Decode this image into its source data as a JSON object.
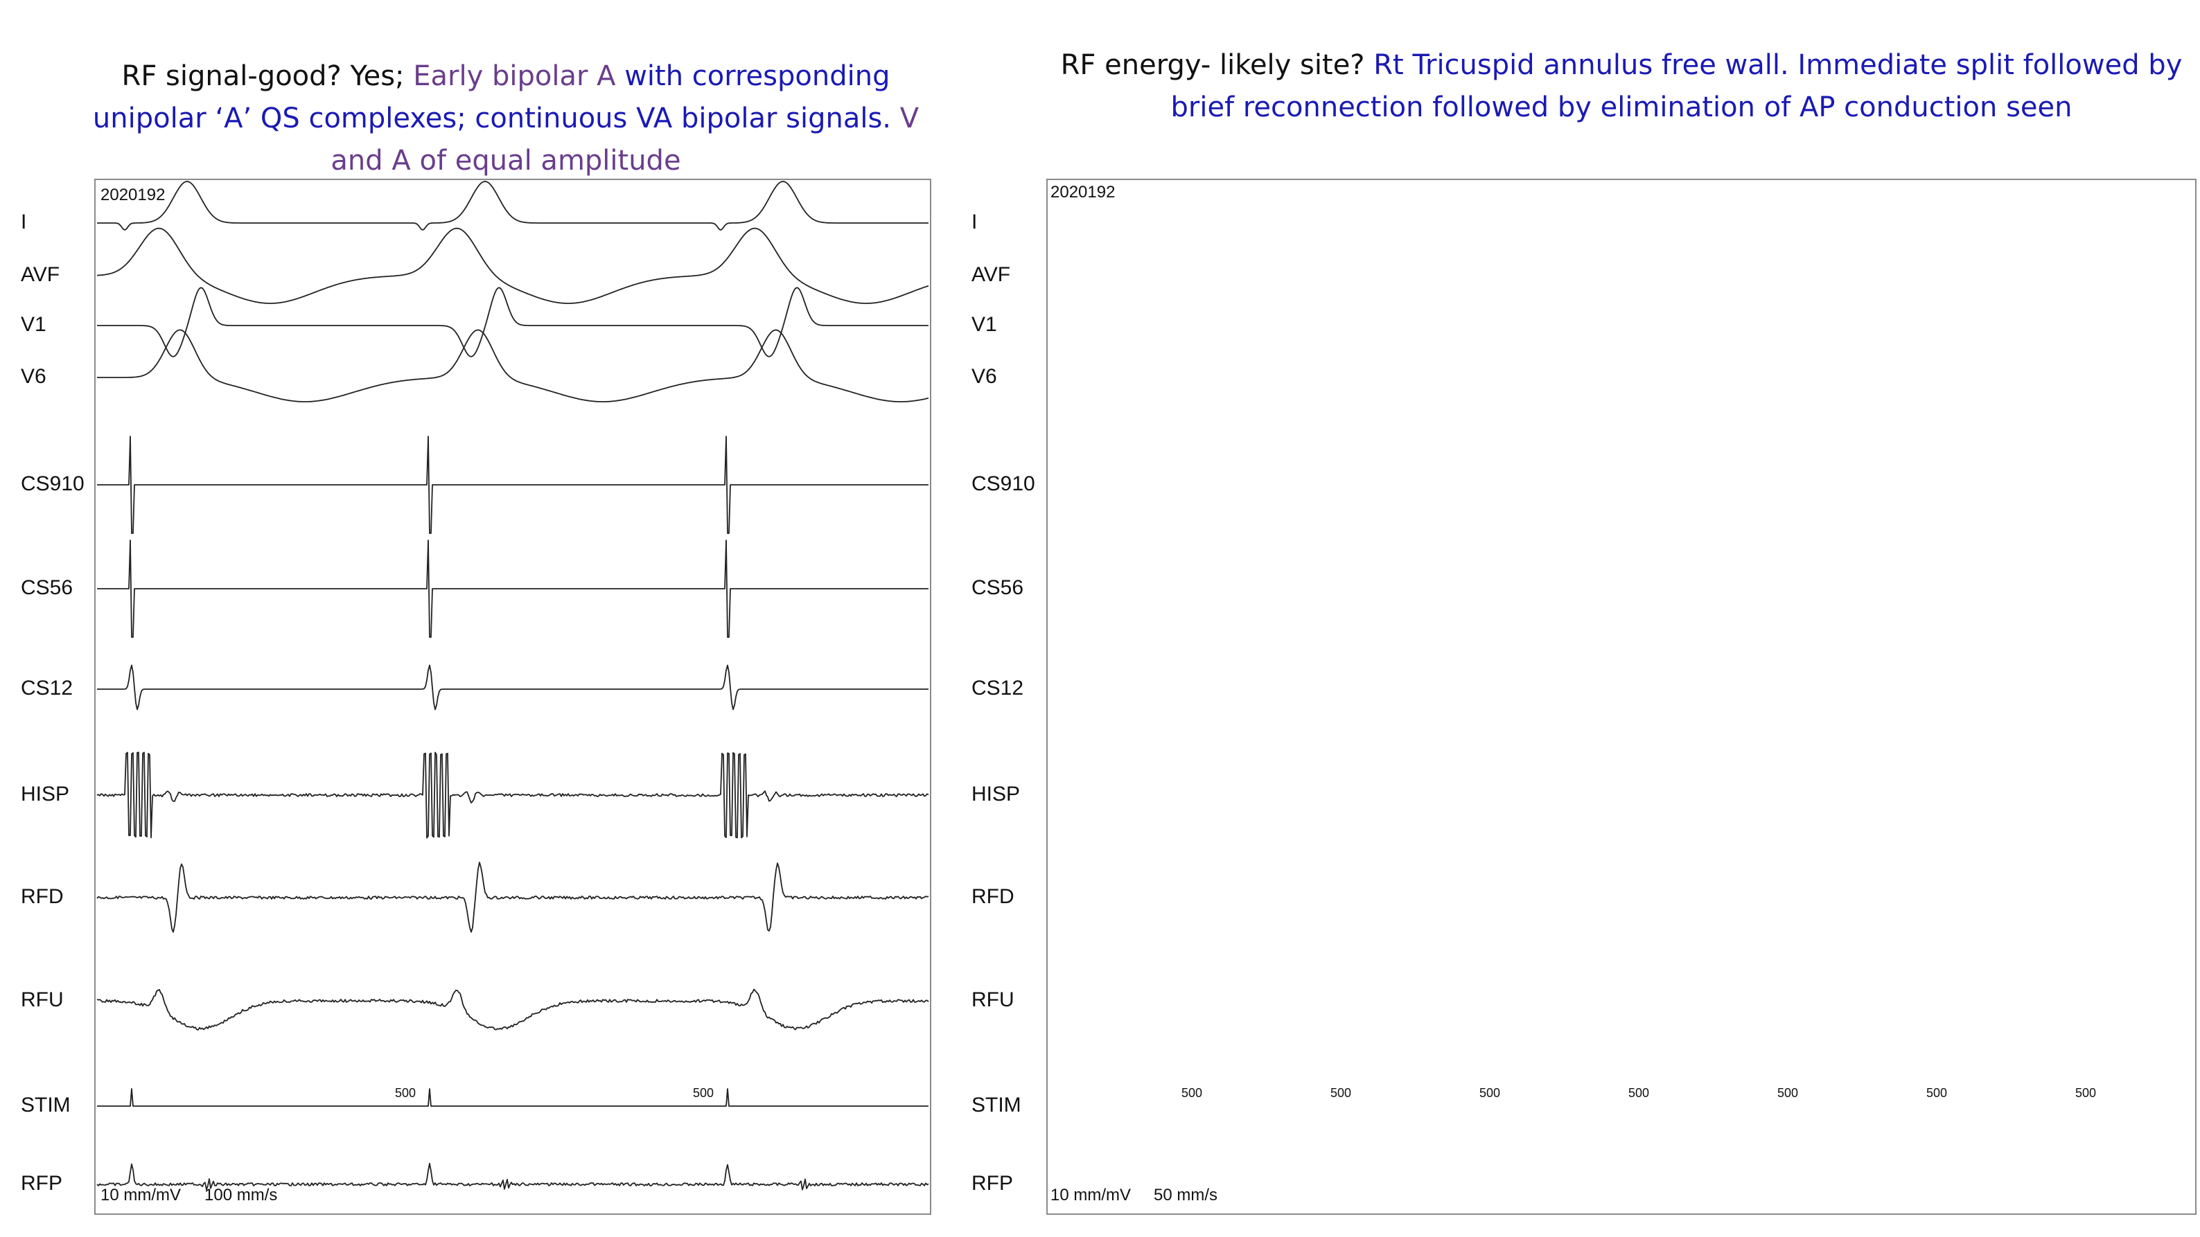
{
  "left": {
    "caption_parts": [
      {
        "text": "RF signal-good? Yes; ",
        "color": "black"
      },
      {
        "text": "Early bipolar A ",
        "color": "purple"
      },
      {
        "text": "with corresponding unipolar ‘A’ QS complexes; continuous VA bipolar signals. ",
        "color": "blue"
      },
      {
        "text": "V and A of equal amplitude",
        "color": "purple"
      }
    ],
    "recording_id": "2020192",
    "leads": [
      "I",
      "AVF",
      "V1",
      "V6",
      "CS910",
      "CS56",
      "CS12",
      "HISP",
      "RFD",
      "RFU",
      "STIM",
      "RFP"
    ],
    "stim_tick_labels": [
      "500",
      "500"
    ],
    "gain": "10 mm/mV",
    "speed": "100 mm/s"
  },
  "right": {
    "caption_parts": [
      {
        "text": "RF energy- likely site? ",
        "color": "black"
      },
      {
        "text": "Rt Tricuspid annulus free wall.  Immediate split followed by brief reconnection followed by elimination of AP conduction seen",
        "color": "blue"
      }
    ],
    "recording_id": "2020192",
    "leads": [
      "I",
      "AVF",
      "V1",
      "V6",
      "CS910",
      "CS56",
      "CS12",
      "HISP",
      "RFD",
      "RFU",
      "STIM",
      "RFP"
    ],
    "stim_tick_labels": [
      "500",
      "500",
      "500",
      "500",
      "500",
      "500",
      "500"
    ],
    "gain": "10 mm/mV",
    "speed": "50 mm/s"
  },
  "colors": {
    "trace": "#222222",
    "frame": "#8a8a8a",
    "purple": "#6a3d8c",
    "blue": "#1a1ab4",
    "black": "#111111"
  }
}
